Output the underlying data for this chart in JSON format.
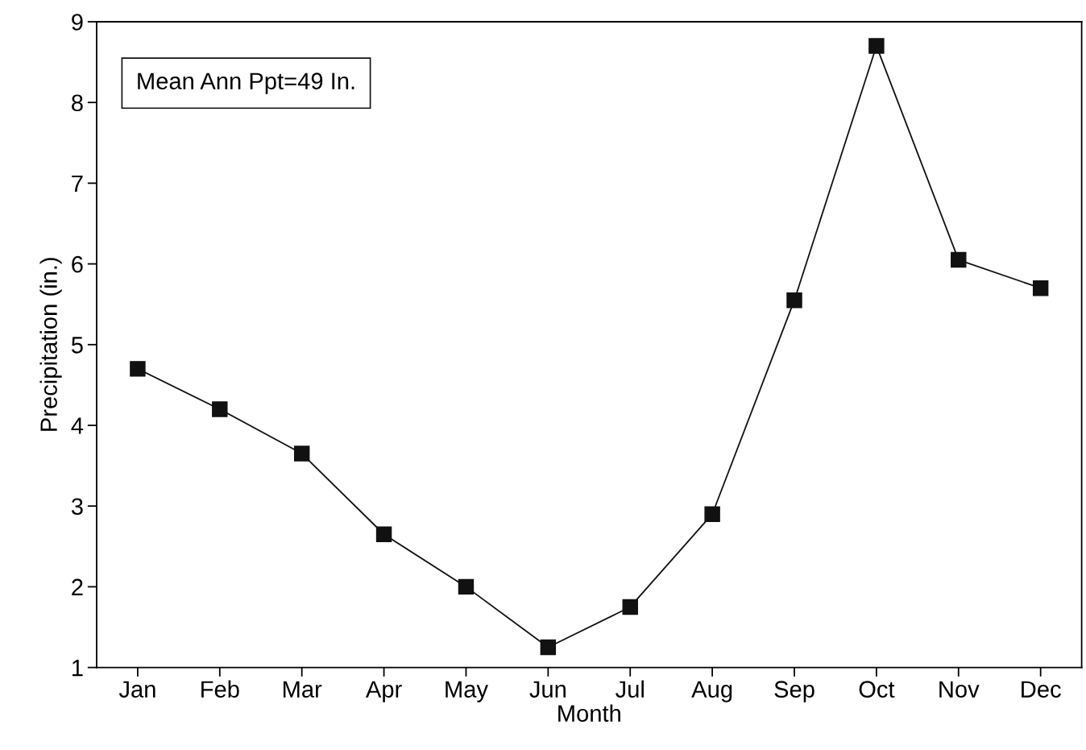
{
  "chart_data": {
    "type": "line",
    "xlabel": "Month",
    "ylabel": "Precipitation (in.)",
    "categories": [
      "Jan",
      "Feb",
      "Mar",
      "Apr",
      "May",
      "Jun",
      "Jul",
      "Aug",
      "Sep",
      "Oct",
      "Nov",
      "Dec"
    ],
    "series": [
      {
        "color": "#111111",
        "values": [
          4.7,
          4.2,
          3.65,
          2.65,
          2.0,
          1.25,
          1.75,
          2.9,
          5.55,
          8.7,
          6.05,
          5.7
        ]
      }
    ],
    "ylim": [
      1,
      9
    ],
    "yticks": [
      1,
      2,
      3,
      4,
      5,
      6,
      7,
      8,
      9
    ],
    "marker": "square",
    "line_style": "solid",
    "grid": false,
    "legend": false,
    "annotations": [
      "Mean Ann Ppt=49 In."
    ]
  }
}
